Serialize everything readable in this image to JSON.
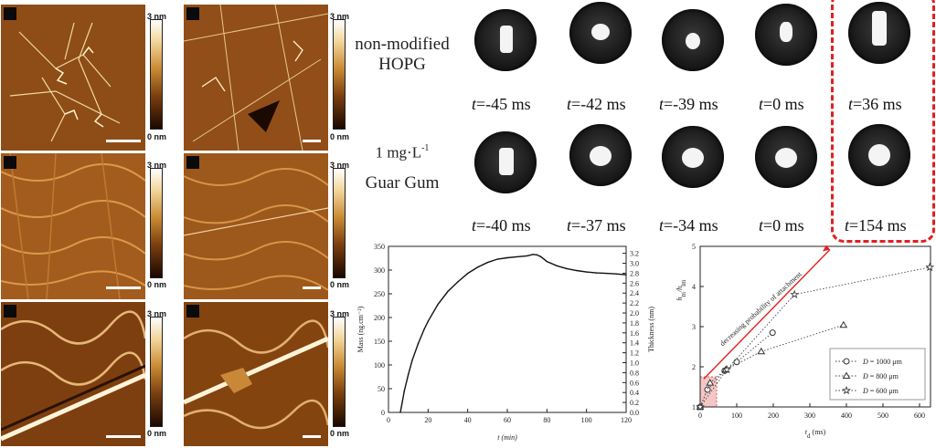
{
  "afm": {
    "colorbar_top": "3 nm",
    "colorbar_bottom": "0 nm"
  },
  "droplets": {
    "row1_label": [
      "non-modified",
      "HOPG"
    ],
    "row2_label": [
      "1 mg·L",
      "-1",
      "Guar Gum"
    ],
    "row1_times": [
      "=-45 ms",
      "=-42 ms",
      "=-39 ms",
      "=0 ms",
      "=36 ms"
    ],
    "row2_times": [
      "=-40 ms",
      "=-37 ms",
      "=-34 ms",
      "=0 ms",
      "=154 ms"
    ],
    "time_var": "t",
    "highlight_color": "#e02020"
  },
  "chart_data": [
    {
      "type": "line",
      "xlabel": "t (min)",
      "ylabel": "Mass (ng.cm⁻²)",
      "y2label": "Thickness (nm)",
      "xlim": [
        0,
        120
      ],
      "ylim": [
        0,
        350
      ],
      "y2lim": [
        0,
        3.34
      ],
      "x_ticks": [
        0,
        20,
        40,
        60,
        80,
        100,
        120
      ],
      "y_ticks": [
        0,
        50,
        100,
        150,
        200,
        250,
        300,
        350
      ],
      "y2_ticks": [
        "0.0",
        "0.2",
        "0.4",
        "0.6",
        "0.8",
        "1.0",
        "1.2",
        "1.4",
        "1.6",
        "1.8",
        "2.0",
        "2.2",
        "2.4",
        "2.6",
        "2.8",
        "3.0",
        "3.2"
      ],
      "x": [
        6,
        8,
        10,
        12,
        15,
        18,
        20,
        25,
        30,
        35,
        40,
        45,
        50,
        55,
        60,
        65,
        70,
        73,
        75,
        77,
        80,
        85,
        90,
        95,
        100,
        105,
        110,
        115,
        120
      ],
      "y": [
        0,
        45,
        80,
        110,
        145,
        175,
        192,
        228,
        255,
        275,
        293,
        306,
        316,
        323,
        326,
        328,
        330,
        333,
        332,
        328,
        318,
        309,
        303,
        299,
        296,
        294,
        293,
        292,
        290
      ],
      "grid": false
    },
    {
      "type": "scatter",
      "xlabel": "t",
      "xlabel_sub": "d",
      "xlabel_unit": " (ms)",
      "ylabel": "h",
      "ylabel_sub1": "m",
      "ylabel_mid": "/h",
      "ylabel_sub2": "lm",
      "xlim": [
        0,
        630
      ],
      "ylim": [
        1,
        5
      ],
      "x_ticks": [
        0,
        100,
        200,
        300,
        400,
        500,
        600
      ],
      "y_ticks": [
        1,
        2,
        3,
        4,
        5
      ],
      "annotation": "decreasing probability of attachment",
      "legend_position": "bottom-right",
      "series": [
        {
          "name": "D = 1000 μm",
          "legend_var": "D",
          "legend_val": " = 1000 μm",
          "marker": "circle",
          "x": [
            0,
            20,
            67,
            100,
            198
          ],
          "y": [
            1.0,
            1.43,
            1.9,
            2.12,
            2.85
          ]
        },
        {
          "name": "D = 800 μm",
          "legend_var": "D",
          "legend_val": " = 800 μm",
          "marker": "triangle",
          "x": [
            0,
            27,
            70,
            167,
            392
          ],
          "y": [
            1.0,
            1.6,
            1.93,
            2.38,
            3.04
          ]
        },
        {
          "name": "D = 600 μm",
          "legend_var": "D",
          "legend_val": " = 600 μm",
          "marker": "star",
          "x": [
            0,
            73,
            258,
            628
          ],
          "y": [
            1.0,
            1.93,
            3.8,
            4.48
          ]
        }
      ],
      "arrow_color": "#e02020",
      "shaded_region": {
        "x": [
          0,
          45
        ],
        "y": [
          1.0,
          1.75
        ],
        "color": "#f4c6c6"
      }
    }
  ]
}
